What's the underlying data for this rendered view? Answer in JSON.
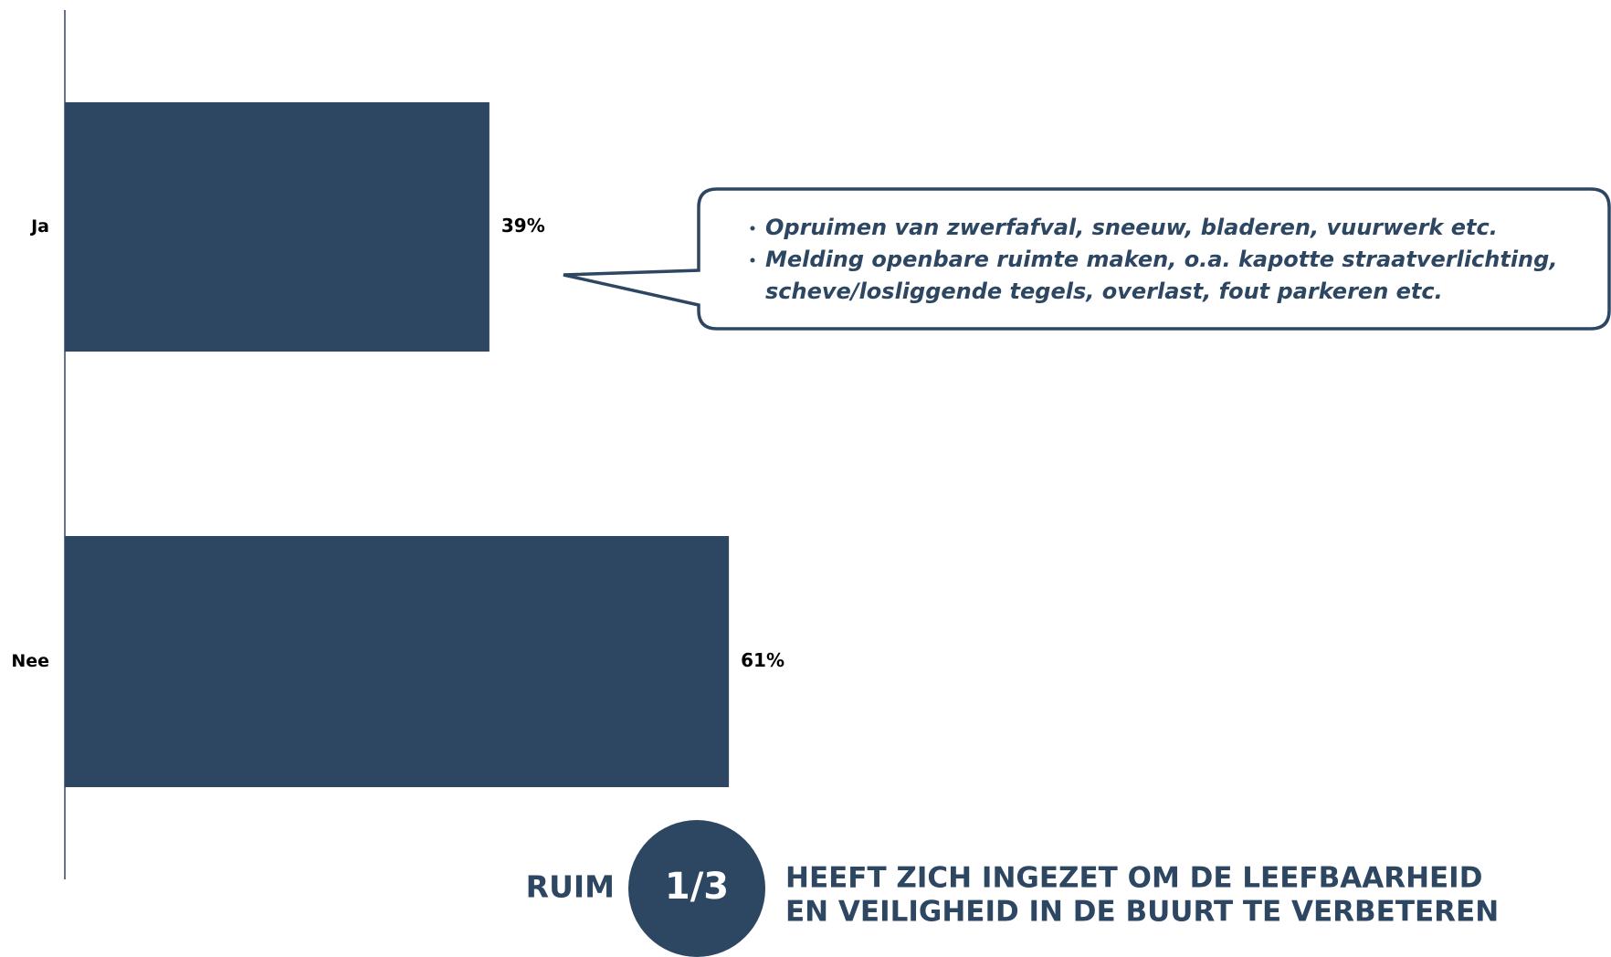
{
  "chart_data": {
    "type": "barh",
    "categories": [
      "Ja",
      "Nee"
    ],
    "values": [
      39,
      61
    ],
    "value_labels": [
      "39%",
      "61%"
    ],
    "color": "#2d4662",
    "xlim": [
      0,
      100
    ],
    "annotations": [
      [
        "Opruimen van zwerfafval, sneeuw, bladeren, vuurwerk etc."
      ],
      [
        "Melding openbare ruimte maken, o.a. kapotte straatverlichting,",
        "scheve/losliggende tegels, overlast, fout parkeren etc."
      ]
    ],
    "summary": {
      "prefix": "RUIM",
      "highlight": "1/3",
      "lines": [
        "HEEFT ZICH INGEZET OM DE LEEFBAARHEID",
        "EN VEILIGHEID IN DE BUURT TE VERBETEREN"
      ]
    }
  }
}
